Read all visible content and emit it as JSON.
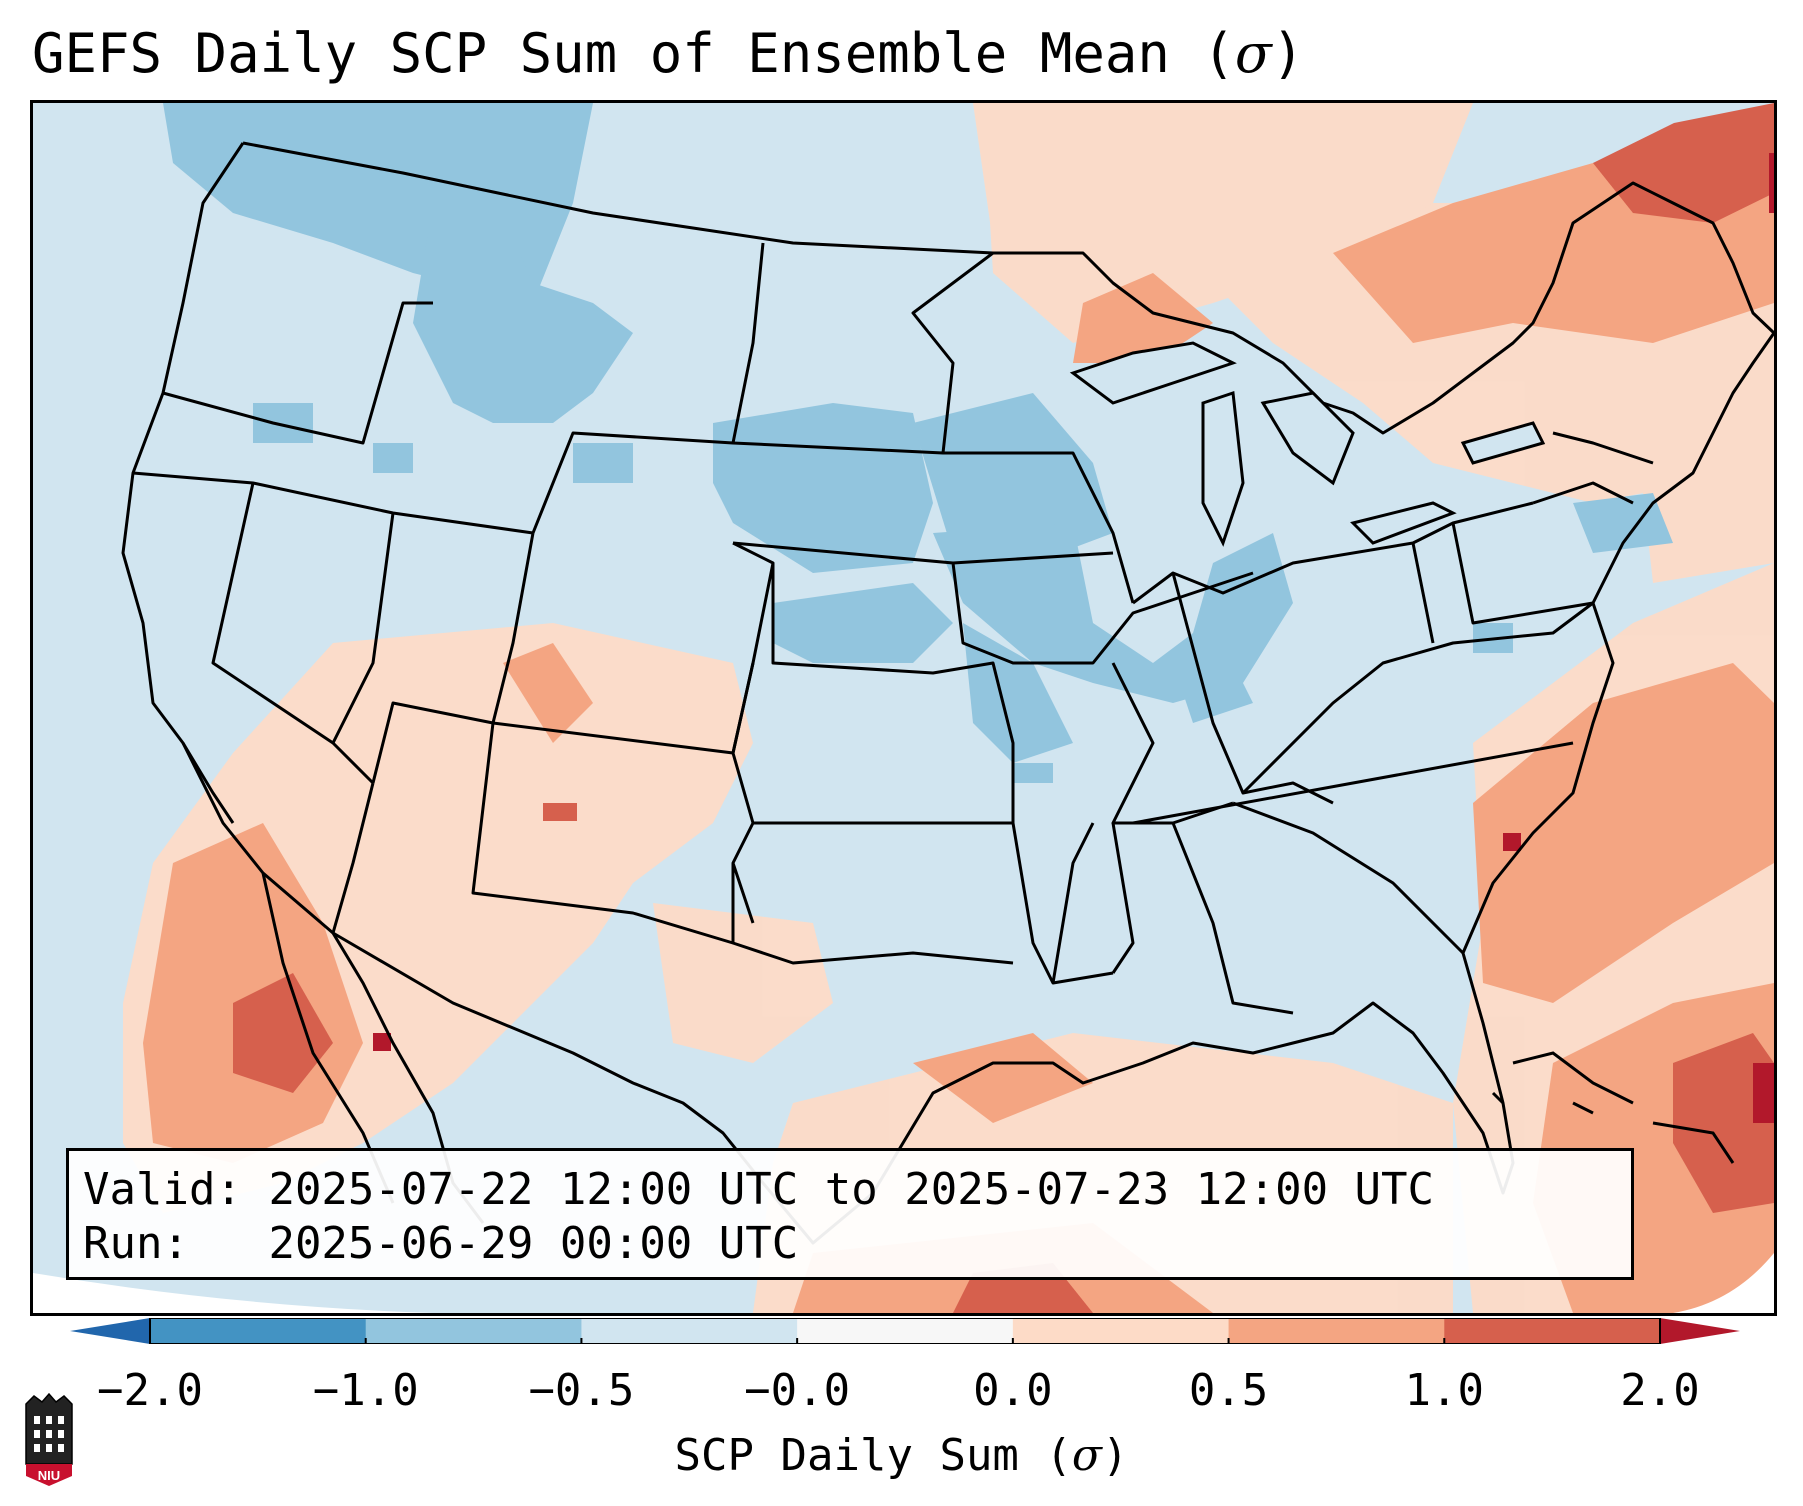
{
  "title": {
    "text": "GEFS Daily SCP Sum of Ensemble Mean (",
    "sigma": "σ",
    "close": ")"
  },
  "info": {
    "valid_label": "Valid:",
    "valid_range": "2025-07-22 12:00 UTC to 2025-07-23 12:00 UTC",
    "run_label": "Run:",
    "run_time": "2025-06-29 00:00 UTC"
  },
  "colorbar": {
    "label_text": "SCP Daily Sum (",
    "label_sigma": "σ",
    "label_close": ")",
    "ticks": [
      "−2.0",
      "−1.0",
      "−0.5",
      "−0.0",
      "0.0",
      "0.5",
      "1.0",
      "2.0"
    ],
    "colors": [
      "#4393c3",
      "#92c5de",
      "#d1e5f0",
      "#f7f7f7",
      "#fddbc7",
      "#f4a582",
      "#d6604d"
    ],
    "extend_low_color": "#2166ac",
    "extend_high_color": "#b2182b"
  },
  "map": {
    "background_color": "#d1e5f0",
    "region": "Contiguous United States"
  },
  "logo": {
    "text": "NIU",
    "color": "#c8102e"
  }
}
